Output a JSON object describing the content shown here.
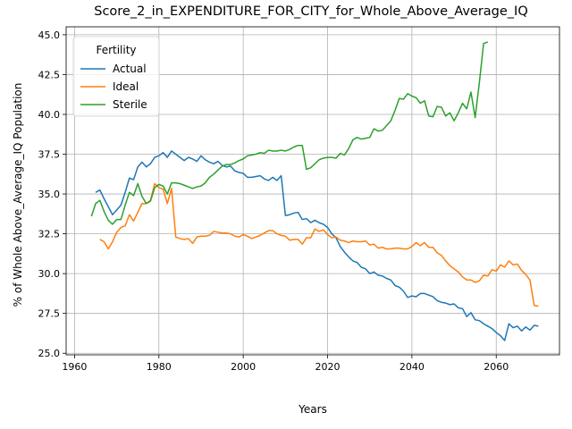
{
  "chart_data": {
    "type": "line",
    "title": "Score_2_in_EXPENDITURE_FOR_CITY_for_Whole_Above_Average_IQ",
    "xlabel": "Years",
    "ylabel": "% of Whole Above_Average_IQ Population",
    "xlim": [
      1958,
      2075
    ],
    "ylim": [
      24.9,
      45.5
    ],
    "xticks": [
      1960,
      1980,
      2000,
      2020,
      2040,
      2060
    ],
    "yticks": [
      25.0,
      27.5,
      30.0,
      32.5,
      35.0,
      37.5,
      40.0,
      42.5,
      45.0
    ],
    "grid": true,
    "legend_title": "Fertility",
    "legend_position": "upper-left",
    "series": [
      {
        "name": "Actual",
        "color": "#1f77b4",
        "points": [
          [
            1965,
            35.1
          ],
          [
            1966,
            35.25
          ],
          [
            1967,
            34.7
          ],
          [
            1968,
            34.2
          ],
          [
            1969,
            33.7
          ],
          [
            1970,
            34.0
          ],
          [
            1971,
            34.3
          ],
          [
            1972,
            35.1
          ],
          [
            1973,
            36.0
          ],
          [
            1974,
            35.9
          ],
          [
            1975,
            36.7
          ],
          [
            1976,
            37.0
          ],
          [
            1977,
            36.7
          ],
          [
            1978,
            36.9
          ],
          [
            1979,
            37.3
          ],
          [
            1980,
            37.4
          ],
          [
            1981,
            37.6
          ],
          [
            1982,
            37.3
          ],
          [
            1983,
            37.7
          ],
          [
            1984,
            37.5
          ],
          [
            1985,
            37.3
          ],
          [
            1986,
            37.1
          ],
          [
            1987,
            37.3
          ],
          [
            1988,
            37.2
          ],
          [
            1989,
            37.05
          ],
          [
            1990,
            37.4
          ],
          [
            1991,
            37.15
          ],
          [
            1992,
            37.0
          ],
          [
            1993,
            36.9
          ],
          [
            1994,
            37.05
          ],
          [
            1995,
            36.8
          ],
          [
            1996,
            36.7
          ],
          [
            1997,
            36.75
          ],
          [
            1998,
            36.45
          ],
          [
            1999,
            36.35
          ],
          [
            2000,
            36.3
          ],
          [
            2001,
            36.05
          ],
          [
            2002,
            36.05
          ],
          [
            2003,
            36.1
          ],
          [
            2004,
            36.15
          ],
          [
            2005,
            35.95
          ],
          [
            2006,
            35.85
          ],
          [
            2007,
            36.05
          ],
          [
            2008,
            35.85
          ],
          [
            2009,
            36.15
          ],
          [
            2010,
            33.65
          ],
          [
            2011,
            33.7
          ],
          [
            2012,
            33.8
          ],
          [
            2013,
            33.85
          ],
          [
            2014,
            33.4
          ],
          [
            2015,
            33.45
          ],
          [
            2016,
            33.2
          ],
          [
            2017,
            33.35
          ],
          [
            2018,
            33.2
          ],
          [
            2019,
            33.1
          ],
          [
            2020,
            32.9
          ],
          [
            2021,
            32.5
          ],
          [
            2022,
            32.25
          ],
          [
            2023,
            31.7
          ],
          [
            2024,
            31.35
          ],
          [
            2025,
            31.05
          ],
          [
            2026,
            30.8
          ],
          [
            2027,
            30.7
          ],
          [
            2028,
            30.4
          ],
          [
            2029,
            30.3
          ],
          [
            2030,
            30.0
          ],
          [
            2031,
            30.1
          ],
          [
            2032,
            29.9
          ],
          [
            2033,
            29.85
          ],
          [
            2034,
            29.7
          ],
          [
            2035,
            29.6
          ],
          [
            2036,
            29.25
          ],
          [
            2037,
            29.15
          ],
          [
            2038,
            28.9
          ],
          [
            2039,
            28.5
          ],
          [
            2040,
            28.6
          ],
          [
            2041,
            28.55
          ],
          [
            2042,
            28.75
          ],
          [
            2043,
            28.75
          ],
          [
            2044,
            28.65
          ],
          [
            2045,
            28.55
          ],
          [
            2046,
            28.3
          ],
          [
            2047,
            28.2
          ],
          [
            2048,
            28.15
          ],
          [
            2049,
            28.05
          ],
          [
            2050,
            28.1
          ],
          [
            2051,
            27.85
          ],
          [
            2052,
            27.8
          ],
          [
            2053,
            27.3
          ],
          [
            2054,
            27.55
          ],
          [
            2055,
            27.1
          ],
          [
            2056,
            27.05
          ],
          [
            2057,
            26.85
          ],
          [
            2058,
            26.7
          ],
          [
            2059,
            26.55
          ],
          [
            2060,
            26.3
          ],
          [
            2061,
            26.1
          ],
          [
            2062,
            25.8
          ],
          [
            2063,
            26.85
          ],
          [
            2064,
            26.6
          ],
          [
            2065,
            26.7
          ],
          [
            2066,
            26.4
          ],
          [
            2067,
            26.65
          ],
          [
            2068,
            26.45
          ],
          [
            2069,
            26.75
          ],
          [
            2070,
            26.7
          ]
        ]
      },
      {
        "name": "Ideal",
        "color": "#ff7f0e",
        "points": [
          [
            1966,
            32.15
          ],
          [
            1967,
            32.0
          ],
          [
            1968,
            31.55
          ],
          [
            1969,
            32.0
          ],
          [
            1970,
            32.6
          ],
          [
            1971,
            32.9
          ],
          [
            1972,
            33.0
          ],
          [
            1973,
            33.7
          ],
          [
            1974,
            33.3
          ],
          [
            1975,
            33.85
          ],
          [
            1976,
            34.4
          ],
          [
            1977,
            34.4
          ],
          [
            1978,
            34.6
          ],
          [
            1979,
            35.65
          ],
          [
            1980,
            35.4
          ],
          [
            1981,
            35.3
          ],
          [
            1982,
            34.4
          ],
          [
            1983,
            35.35
          ],
          [
            1984,
            32.3
          ],
          [
            1985,
            32.2
          ],
          [
            1986,
            32.15
          ],
          [
            1987,
            32.2
          ],
          [
            1988,
            31.9
          ],
          [
            1989,
            32.3
          ],
          [
            1990,
            32.35
          ],
          [
            1991,
            32.35
          ],
          [
            1992,
            32.4
          ],
          [
            1993,
            32.65
          ],
          [
            1994,
            32.6
          ],
          [
            1995,
            32.55
          ],
          [
            1996,
            32.55
          ],
          [
            1997,
            32.5
          ],
          [
            1998,
            32.35
          ],
          [
            1999,
            32.3
          ],
          [
            2000,
            32.45
          ],
          [
            2001,
            32.35
          ],
          [
            2002,
            32.2
          ],
          [
            2003,
            32.3
          ],
          [
            2004,
            32.4
          ],
          [
            2005,
            32.55
          ],
          [
            2006,
            32.7
          ],
          [
            2007,
            32.7
          ],
          [
            2008,
            32.5
          ],
          [
            2009,
            32.4
          ],
          [
            2010,
            32.35
          ],
          [
            2011,
            32.1
          ],
          [
            2012,
            32.15
          ],
          [
            2013,
            32.15
          ],
          [
            2014,
            31.85
          ],
          [
            2015,
            32.25
          ],
          [
            2016,
            32.25
          ],
          [
            2017,
            32.8
          ],
          [
            2018,
            32.65
          ],
          [
            2019,
            32.75
          ],
          [
            2020,
            32.45
          ],
          [
            2021,
            32.25
          ],
          [
            2022,
            32.3
          ],
          [
            2023,
            32.1
          ],
          [
            2024,
            32.05
          ],
          [
            2025,
            31.95
          ],
          [
            2026,
            32.05
          ],
          [
            2027,
            32.0
          ],
          [
            2028,
            32.0
          ],
          [
            2029,
            32.05
          ],
          [
            2030,
            31.8
          ],
          [
            2031,
            31.85
          ],
          [
            2032,
            31.6
          ],
          [
            2033,
            31.65
          ],
          [
            2034,
            31.55
          ],
          [
            2035,
            31.55
          ],
          [
            2036,
            31.6
          ],
          [
            2037,
            31.6
          ],
          [
            2038,
            31.55
          ],
          [
            2039,
            31.55
          ],
          [
            2040,
            31.7
          ],
          [
            2041,
            31.95
          ],
          [
            2042,
            31.75
          ],
          [
            2043,
            31.95
          ],
          [
            2044,
            31.65
          ],
          [
            2045,
            31.65
          ],
          [
            2046,
            31.3
          ],
          [
            2047,
            31.15
          ],
          [
            2048,
            30.8
          ],
          [
            2049,
            30.5
          ],
          [
            2050,
            30.3
          ],
          [
            2051,
            30.1
          ],
          [
            2052,
            29.8
          ],
          [
            2053,
            29.6
          ],
          [
            2054,
            29.6
          ],
          [
            2055,
            29.45
          ],
          [
            2056,
            29.55
          ],
          [
            2057,
            29.9
          ],
          [
            2058,
            29.85
          ],
          [
            2059,
            30.25
          ],
          [
            2060,
            30.15
          ],
          [
            2061,
            30.55
          ],
          [
            2062,
            30.4
          ],
          [
            2063,
            30.8
          ],
          [
            2064,
            30.55
          ],
          [
            2065,
            30.6
          ],
          [
            2066,
            30.2
          ],
          [
            2067,
            29.95
          ],
          [
            2068,
            29.6
          ],
          [
            2069,
            28.0
          ],
          [
            2070,
            27.95
          ]
        ]
      },
      {
        "name": "Sterile",
        "color": "#2ca02c",
        "points": [
          [
            1964,
            33.6
          ],
          [
            1965,
            34.4
          ],
          [
            1966,
            34.6
          ],
          [
            1967,
            33.9
          ],
          [
            1968,
            33.35
          ],
          [
            1969,
            33.1
          ],
          [
            1970,
            33.4
          ],
          [
            1971,
            33.4
          ],
          [
            1972,
            34.3
          ],
          [
            1973,
            35.1
          ],
          [
            1974,
            34.9
          ],
          [
            1975,
            35.65
          ],
          [
            1976,
            34.85
          ],
          [
            1977,
            34.4
          ],
          [
            1978,
            34.55
          ],
          [
            1979,
            35.4
          ],
          [
            1980,
            35.6
          ],
          [
            1981,
            35.5
          ],
          [
            1982,
            35.0
          ],
          [
            1983,
            35.7
          ],
          [
            1984,
            35.7
          ],
          [
            1985,
            35.65
          ],
          [
            1986,
            35.55
          ],
          [
            1987,
            35.45
          ],
          [
            1988,
            35.35
          ],
          [
            1989,
            35.45
          ],
          [
            1990,
            35.5
          ],
          [
            1991,
            35.7
          ],
          [
            1992,
            36.05
          ],
          [
            1993,
            36.25
          ],
          [
            1994,
            36.5
          ],
          [
            1995,
            36.75
          ],
          [
            1996,
            36.85
          ],
          [
            1997,
            36.85
          ],
          [
            1998,
            36.95
          ],
          [
            1999,
            37.1
          ],
          [
            2000,
            37.2
          ],
          [
            2001,
            37.4
          ],
          [
            2002,
            37.45
          ],
          [
            2003,
            37.5
          ],
          [
            2004,
            37.6
          ],
          [
            2005,
            37.55
          ],
          [
            2006,
            37.75
          ],
          [
            2007,
            37.7
          ],
          [
            2008,
            37.7
          ],
          [
            2009,
            37.75
          ],
          [
            2010,
            37.7
          ],
          [
            2011,
            37.8
          ],
          [
            2012,
            37.95
          ],
          [
            2013,
            38.05
          ],
          [
            2014,
            38.05
          ],
          [
            2015,
            36.55
          ],
          [
            2016,
            36.65
          ],
          [
            2017,
            36.9
          ],
          [
            2018,
            37.15
          ],
          [
            2019,
            37.25
          ],
          [
            2020,
            37.3
          ],
          [
            2021,
            37.3
          ],
          [
            2022,
            37.25
          ],
          [
            2023,
            37.55
          ],
          [
            2024,
            37.45
          ],
          [
            2025,
            37.85
          ],
          [
            2026,
            38.4
          ],
          [
            2027,
            38.55
          ],
          [
            2028,
            38.45
          ],
          [
            2029,
            38.5
          ],
          [
            2030,
            38.55
          ],
          [
            2031,
            39.1
          ],
          [
            2032,
            38.95
          ],
          [
            2033,
            39.0
          ],
          [
            2034,
            39.3
          ],
          [
            2035,
            39.6
          ],
          [
            2036,
            40.25
          ],
          [
            2037,
            41.0
          ],
          [
            2038,
            40.95
          ],
          [
            2039,
            41.3
          ],
          [
            2040,
            41.15
          ],
          [
            2041,
            41.05
          ],
          [
            2042,
            40.7
          ],
          [
            2043,
            40.85
          ],
          [
            2044,
            39.9
          ],
          [
            2045,
            39.85
          ],
          [
            2046,
            40.5
          ],
          [
            2047,
            40.45
          ],
          [
            2048,
            39.9
          ],
          [
            2049,
            40.1
          ],
          [
            2050,
            39.6
          ],
          [
            2051,
            40.1
          ],
          [
            2052,
            40.7
          ],
          [
            2053,
            40.35
          ],
          [
            2054,
            41.4
          ],
          [
            2055,
            39.8
          ],
          [
            2056,
            42.0
          ],
          [
            2057,
            44.45
          ],
          [
            2058,
            44.55
          ]
        ]
      }
    ]
  }
}
